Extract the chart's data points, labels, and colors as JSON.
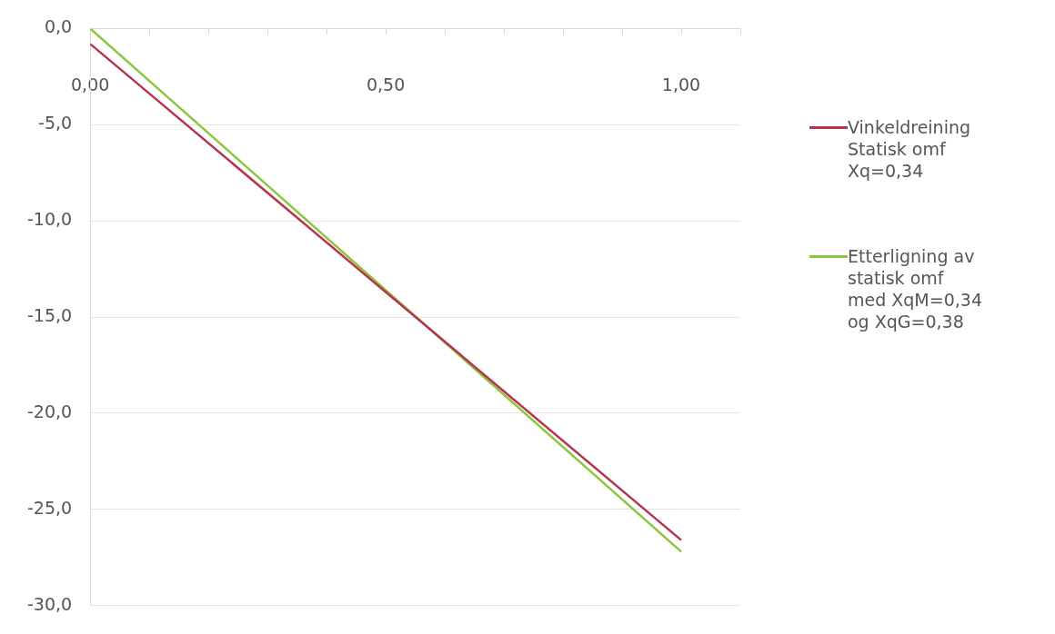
{
  "chart_data": {
    "type": "line",
    "xlim": [
      0,
      1.1
    ],
    "xticks": [
      {
        "value": 0,
        "label": "0,00"
      },
      {
        "value": 0.1,
        "label": null
      },
      {
        "value": 0.2,
        "label": null
      },
      {
        "value": 0.3,
        "label": null
      },
      {
        "value": 0.4,
        "label": null
      },
      {
        "value": 0.5,
        "label": "0,50"
      },
      {
        "value": 0.6,
        "label": null
      },
      {
        "value": 0.7,
        "label": null
      },
      {
        "value": 0.8,
        "label": null
      },
      {
        "value": 0.9,
        "label": null
      },
      {
        "value": 1.0,
        "label": "1,00"
      },
      {
        "value": 1.1,
        "label": null
      }
    ],
    "ylim": [
      -30,
      0
    ],
    "yticks": [
      {
        "value": 0,
        "label": "0,0"
      },
      {
        "value": -5,
        "label": "-5,0"
      },
      {
        "value": -10,
        "label": "-10,0"
      },
      {
        "value": -15,
        "label": "-15,0"
      },
      {
        "value": -20,
        "label": "-20,0"
      },
      {
        "value": -25,
        "label": "-25,0"
      },
      {
        "value": -30,
        "label": "-30,0"
      }
    ],
    "grid": "y",
    "legend": "right",
    "marker": "none",
    "line_style": "solid",
    "series": [
      {
        "name": "Vinkeldreining Statisk omf Xq=0,34",
        "color": "#b5354f",
        "x": [
          0,
          0.5,
          1.0
        ],
        "values": [
          -0.8,
          -13.7,
          -26.6
        ]
      },
      {
        "name": "Etterligning av statisk omf med XqM=0,34 og XqG=0,38",
        "color": "#8cc63f",
        "x": [
          0,
          0.5,
          1.0
        ],
        "values": [
          0,
          -13.6,
          -27.2
        ]
      }
    ]
  }
}
